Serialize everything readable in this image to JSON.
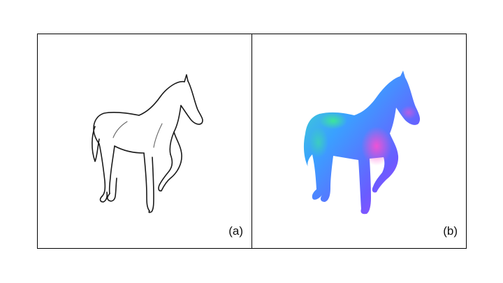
{
  "panels": [
    {
      "label": "(a)",
      "content": "sketch"
    },
    {
      "label": "(b)",
      "content": "normal-map"
    }
  ]
}
